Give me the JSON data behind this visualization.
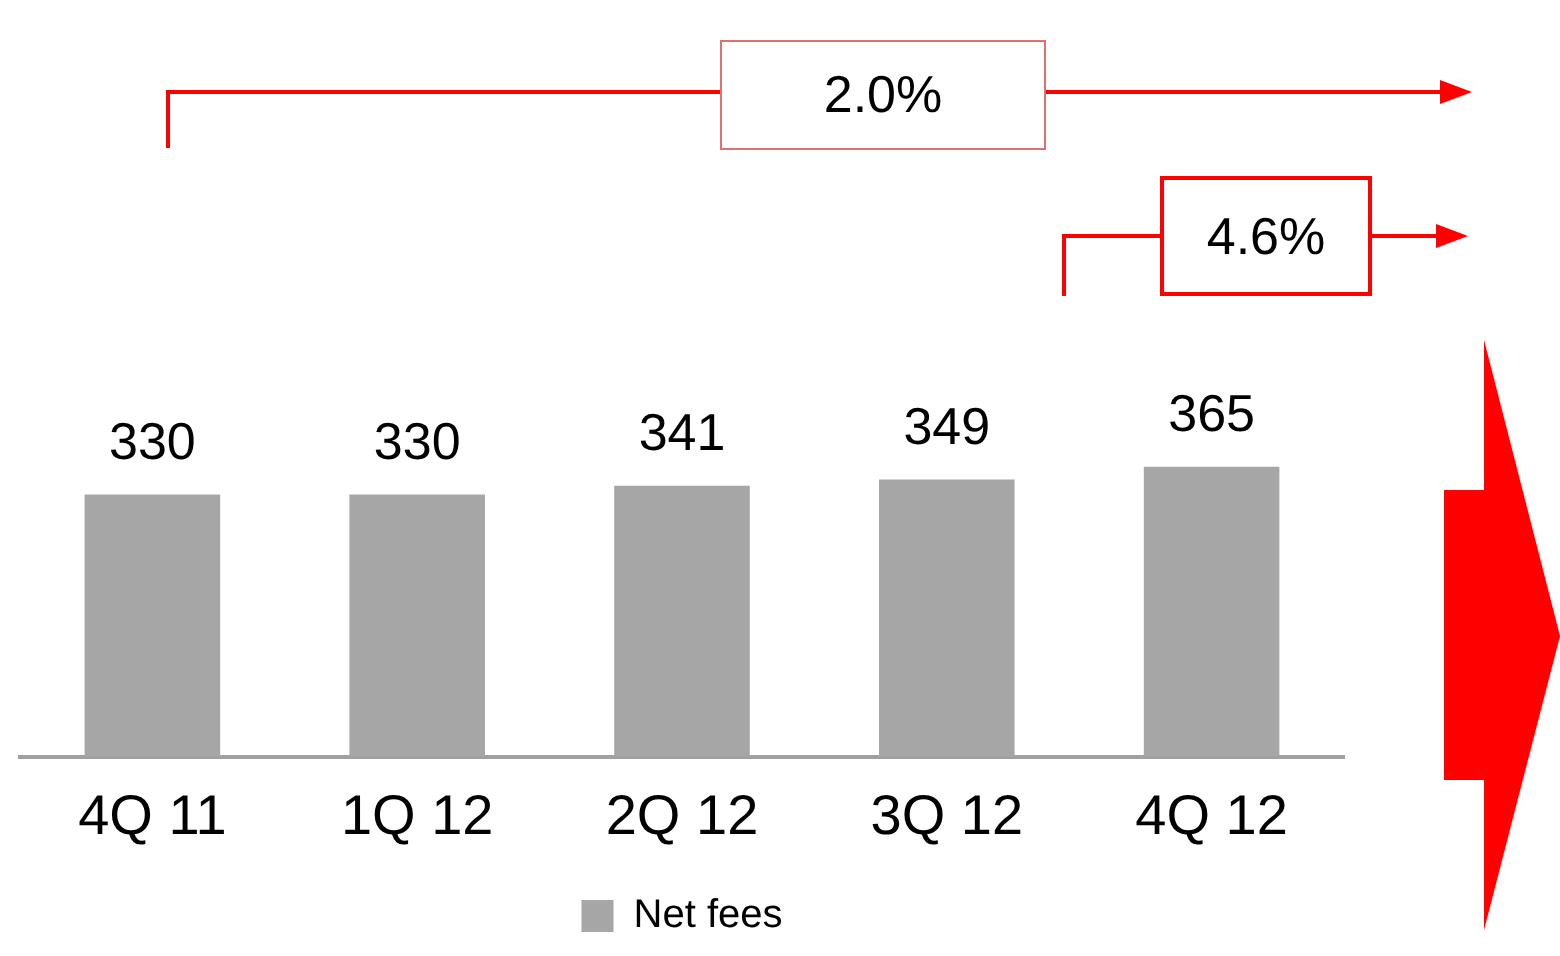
{
  "chart_data": {
    "type": "bar",
    "categories": [
      "4Q 11",
      "1Q 12",
      "2Q 12",
      "3Q 12",
      "4Q 12"
    ],
    "series": [
      {
        "name": "Net fees",
        "color": "#a6a6a6",
        "values": [
          330,
          330,
          341,
          349,
          365
        ]
      }
    ],
    "tick_labels": "x",
    "grid": false,
    "legend": "bottom",
    "data_labels": true,
    "annotations": [
      "2.0%",
      "4.6%"
    ]
  }
}
